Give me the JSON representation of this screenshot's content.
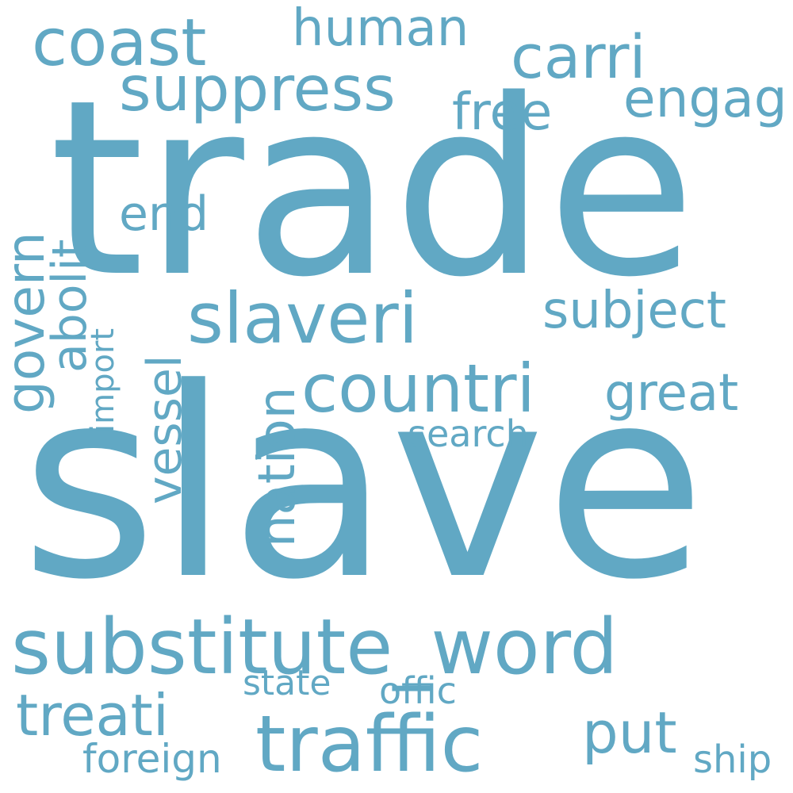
{
  "cloud": {
    "color": "#61a8c4",
    "words": {
      "trade": "trade",
      "slave": "slave",
      "substitute_word": "substitute_word",
      "traffic": "traffic",
      "slaveri": "slaveri",
      "countri": "countri",
      "coast": "coast",
      "suppress": "suppress",
      "carri": "carri",
      "human": "human",
      "engag": "engag",
      "free": "free",
      "end": "end",
      "subject": "subject",
      "great": "great",
      "search": "search",
      "treati": "treati",
      "put": "put",
      "state": "state",
      "offic": "offic",
      "foreign": "foreign",
      "ship": "ship",
      "govern": "govern",
      "abolit": "abolit",
      "import": "import",
      "vessel": "vessel",
      "nation": "nation"
    }
  }
}
